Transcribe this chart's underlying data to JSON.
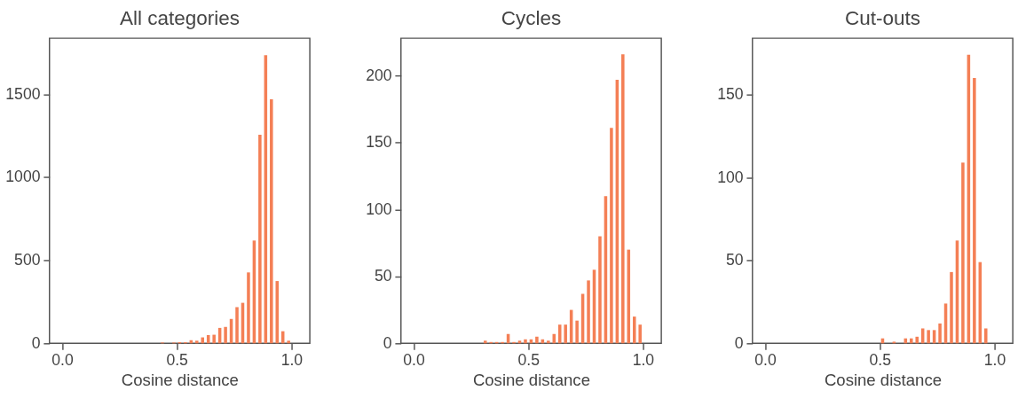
{
  "chart_data": [
    {
      "type": "histogram",
      "title": "All categories",
      "xlabel": "Cosine distance",
      "color": "#f47f55",
      "grid": false,
      "bins": [
        0,
        0.025,
        0.05,
        0.075,
        0.1,
        0.125,
        0.15,
        0.175,
        0.2,
        0.225,
        0.25,
        0.275,
        0.3,
        0.325,
        0.35,
        0.375,
        0.4,
        0.425,
        0.45,
        0.475,
        0.5,
        0.525,
        0.55,
        0.575,
        0.6,
        0.625,
        0.65,
        0.675,
        0.7,
        0.725,
        0.75,
        0.775,
        0.8,
        0.825,
        0.85,
        0.875,
        0.9,
        0.925,
        0.95,
        0.975,
        1.0
      ],
      "values": [
        0,
        0,
        0,
        0,
        0,
        0,
        0,
        0,
        0,
        0,
        0,
        0,
        0,
        0,
        0,
        0,
        0,
        5,
        0,
        5,
        7,
        7,
        19,
        16,
        36,
        50,
        52,
        93,
        99,
        147,
        218,
        244,
        427,
        619,
        1256,
        1735,
        1469,
        375,
        73,
        16
      ],
      "xlim": [
        -0.055,
        1.08
      ],
      "xticks": [
        {
          "value": 0,
          "label": "0.0"
        },
        {
          "value": 0.5,
          "label": "0.5"
        },
        {
          "value": 1.0,
          "label": "1.0"
        }
      ],
      "ylim": [
        0,
        1837
      ],
      "yticks": [
        0,
        500,
        1000,
        1500
      ]
    },
    {
      "type": "histogram",
      "title": "Cycles",
      "xlabel": "Cosine distance",
      "color": "#f47f55",
      "grid": false,
      "bins": [
        0,
        0.025,
        0.05,
        0.075,
        0.1,
        0.125,
        0.15,
        0.175,
        0.2,
        0.225,
        0.25,
        0.275,
        0.3,
        0.325,
        0.35,
        0.375,
        0.4,
        0.425,
        0.45,
        0.475,
        0.5,
        0.525,
        0.55,
        0.575,
        0.6,
        0.625,
        0.65,
        0.675,
        0.7,
        0.725,
        0.75,
        0.775,
        0.8,
        0.825,
        0.85,
        0.875,
        0.9,
        0.925,
        0.95,
        0.975,
        1.0
      ],
      "values": [
        0,
        0,
        0,
        0,
        0,
        0,
        0,
        0,
        0,
        0,
        0,
        0,
        2,
        1,
        1,
        1,
        7,
        1,
        2,
        3,
        3,
        5,
        3,
        2,
        7,
        14,
        14,
        25,
        17,
        37,
        47,
        55,
        80,
        110,
        161,
        197,
        216,
        70,
        20,
        14
      ],
      "xlim": [
        -0.055,
        1.08
      ],
      "xticks": [
        {
          "value": 0,
          "label": "0.0"
        },
        {
          "value": 0.5,
          "label": "0.5"
        },
        {
          "value": 1.0,
          "label": "1.0"
        }
      ],
      "ylim": [
        0,
        228
      ],
      "yticks": [
        0,
        50,
        100,
        150,
        200
      ]
    },
    {
      "type": "histogram",
      "title": "Cut-outs",
      "xlabel": "Cosine distance",
      "color": "#f47f55",
      "grid": false,
      "bins": [
        0,
        0.025,
        0.05,
        0.075,
        0.1,
        0.125,
        0.15,
        0.175,
        0.2,
        0.225,
        0.25,
        0.275,
        0.3,
        0.325,
        0.35,
        0.375,
        0.4,
        0.425,
        0.45,
        0.475,
        0.5,
        0.525,
        0.55,
        0.575,
        0.6,
        0.625,
        0.65,
        0.675,
        0.7,
        0.725,
        0.75,
        0.775,
        0.8,
        0.825,
        0.85,
        0.875,
        0.9,
        0.925,
        0.95,
        0.975,
        1.0
      ],
      "values": [
        0,
        0,
        0,
        0,
        0,
        0,
        0,
        0,
        0,
        0,
        0,
        0,
        0,
        0,
        0,
        0,
        0,
        0,
        0,
        0,
        3,
        0,
        1,
        0,
        3,
        3,
        4,
        9,
        8,
        8,
        12,
        24,
        43,
        62,
        109,
        174,
        160,
        49,
        9,
        0
      ],
      "xlim": [
        -0.055,
        1.08
      ],
      "xticks": [
        {
          "value": 0,
          "label": "0.0"
        },
        {
          "value": 0.5,
          "label": "0.5"
        },
        {
          "value": 1.0,
          "label": "1.0"
        }
      ],
      "ylim": [
        0,
        184
      ],
      "yticks": [
        0,
        50,
        100,
        150
      ]
    }
  ]
}
